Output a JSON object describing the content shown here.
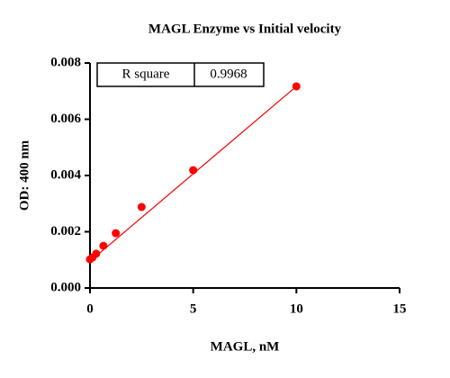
{
  "chart_data": {
    "type": "scatter",
    "title": "MAGL Enzyme vs Initial velocity",
    "x_label": "MAGL, nM",
    "y_label": "OD: 400 nm",
    "color": "#ff0000",
    "x": [
      0,
      0.13,
      0.3,
      0.65,
      1.25,
      2.5,
      5,
      10
    ],
    "values": [
      0.00102,
      0.00109,
      0.00122,
      0.0015,
      0.00195,
      0.00288,
      0.00419,
      0.00717
    ],
    "fit_line": {
      "x": [
        0,
        10
      ],
      "y": [
        0.00095,
        0.00717
      ]
    },
    "xlim": [
      0,
      15
    ],
    "ylim": [
      0,
      0.008
    ],
    "xticks": [
      0,
      5,
      10,
      15
    ],
    "yticks": [
      {
        "value": 0,
        "label": "0.000"
      },
      {
        "value": 0.002,
        "label": "0.002"
      },
      {
        "value": 0.004,
        "label": "0.004"
      },
      {
        "value": 0.006,
        "label": "0.006"
      },
      {
        "value": 0.008,
        "label": "0.008"
      }
    ],
    "stats_table": {
      "label": "R square",
      "value": "0.9968"
    }
  }
}
